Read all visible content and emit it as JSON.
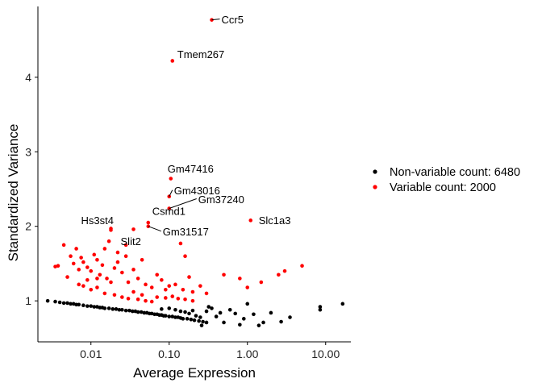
{
  "chart_data": {
    "type": "scatter",
    "xlabel": "Average Expression",
    "ylabel": "Standardized Variance",
    "x_scale": "log10",
    "xlim": [
      0.0021,
      21
    ],
    "ylim": [
      0.45,
      4.95
    ],
    "x_ticks": [
      {
        "value": 0.01,
        "label": "0.01"
      },
      {
        "value": 0.1,
        "label": "0.10"
      },
      {
        "value": 1,
        "label": "1.00"
      },
      {
        "value": 10,
        "label": "10.00"
      }
    ],
    "y_ticks": [
      {
        "value": 1,
        "label": "1"
      },
      {
        "value": 2,
        "label": "2"
      },
      {
        "value": 3,
        "label": "3"
      },
      {
        "value": 4,
        "label": "4"
      }
    ],
    "grid": false,
    "legend_position": "right",
    "series": [
      {
        "name": "Non-variable count: 6480",
        "color": "#000000",
        "points": [
          [
            0.0028,
            1.0
          ],
          [
            0.0035,
            0.99
          ],
          [
            0.004,
            0.98
          ],
          [
            0.0045,
            0.97
          ],
          [
            0.005,
            0.97
          ],
          [
            0.0055,
            0.96
          ],
          [
            0.006,
            0.96
          ],
          [
            0.0065,
            0.95
          ],
          [
            0.007,
            0.95
          ],
          [
            0.008,
            0.94
          ],
          [
            0.009,
            0.93
          ],
          [
            0.01,
            0.93
          ],
          [
            0.011,
            0.92
          ],
          [
            0.012,
            0.92
          ],
          [
            0.013,
            0.91
          ],
          [
            0.014,
            0.91
          ],
          [
            0.015,
            0.9
          ],
          [
            0.017,
            0.9
          ],
          [
            0.019,
            0.89
          ],
          [
            0.021,
            0.89
          ],
          [
            0.023,
            0.88
          ],
          [
            0.025,
            0.88
          ],
          [
            0.028,
            0.87
          ],
          [
            0.031,
            0.87
          ],
          [
            0.034,
            0.86
          ],
          [
            0.037,
            0.86
          ],
          [
            0.04,
            0.85
          ],
          [
            0.044,
            0.85
          ],
          [
            0.048,
            0.84
          ],
          [
            0.052,
            0.84
          ],
          [
            0.056,
            0.83
          ],
          [
            0.06,
            0.83
          ],
          [
            0.065,
            0.82
          ],
          [
            0.07,
            0.82
          ],
          [
            0.075,
            0.81
          ],
          [
            0.08,
            0.81
          ],
          [
            0.085,
            0.8
          ],
          [
            0.09,
            0.8
          ],
          [
            0.1,
            0.79
          ],
          [
            0.11,
            0.79
          ],
          [
            0.12,
            0.78
          ],
          [
            0.13,
            0.78
          ],
          [
            0.14,
            0.77
          ],
          [
            0.15,
            0.76
          ],
          [
            0.17,
            0.76
          ],
          [
            0.19,
            0.75
          ],
          [
            0.21,
            0.74
          ],
          [
            0.24,
            0.73
          ],
          [
            0.27,
            0.72
          ],
          [
            0.3,
            0.71
          ],
          [
            0.08,
            0.89
          ],
          [
            0.1,
            0.9
          ],
          [
            0.12,
            0.88
          ],
          [
            0.14,
            0.86
          ],
          [
            0.16,
            0.85
          ],
          [
            0.18,
            0.83
          ],
          [
            0.2,
            0.87
          ],
          [
            0.22,
            0.8
          ],
          [
            0.25,
            0.78
          ],
          [
            0.3,
            0.86
          ],
          [
            0.35,
            0.9
          ],
          [
            0.4,
            0.79
          ],
          [
            0.45,
            0.84
          ],
          [
            0.5,
            0.71
          ],
          [
            0.6,
            0.88
          ],
          [
            0.7,
            0.83
          ],
          [
            0.8,
            0.68
          ],
          [
            0.9,
            0.76
          ],
          [
            1.0,
            0.96
          ],
          [
            1.2,
            0.82
          ],
          [
            1.4,
            0.67
          ],
          [
            1.6,
            0.71
          ],
          [
            2.0,
            0.84
          ],
          [
            2.7,
            0.72
          ],
          [
            3.5,
            0.78
          ],
          [
            8.5,
            0.88
          ],
          [
            8.5,
            0.92
          ],
          [
            16.5,
            0.96
          ],
          [
            0.26,
            0.67
          ],
          [
            0.32,
            0.92
          ]
        ]
      },
      {
        "name": "Variable count: 2000",
        "color": "#ff0000",
        "points": [
          [
            0.0038,
            1.47
          ],
          [
            0.0035,
            1.46
          ],
          [
            0.0045,
            1.75
          ],
          [
            0.005,
            1.32
          ],
          [
            0.0055,
            1.6
          ],
          [
            0.006,
            1.5
          ],
          [
            0.0065,
            1.7
          ],
          [
            0.007,
            1.42
          ],
          [
            0.0075,
            1.58
          ],
          [
            0.008,
            1.52
          ],
          [
            0.009,
            1.45
          ],
          [
            0.01,
            1.4
          ],
          [
            0.011,
            1.62
          ],
          [
            0.012,
            1.55
          ],
          [
            0.013,
            1.35
          ],
          [
            0.014,
            1.48
          ],
          [
            0.015,
            1.7
          ],
          [
            0.016,
            1.3
          ],
          [
            0.018,
            1.95
          ],
          [
            0.02,
            1.44
          ],
          [
            0.022,
            1.52
          ],
          [
            0.025,
            1.38
          ],
          [
            0.028,
            1.6
          ],
          [
            0.03,
            1.25
          ],
          [
            0.035,
            1.42
          ],
          [
            0.04,
            1.3
          ],
          [
            0.045,
            1.55
          ],
          [
            0.05,
            1.22
          ],
          [
            0.06,
            1.18
          ],
          [
            0.07,
            1.35
          ],
          [
            0.08,
            1.28
          ],
          [
            0.09,
            1.15
          ],
          [
            0.1,
            1.2
          ],
          [
            0.12,
            1.22
          ],
          [
            0.15,
            1.15
          ],
          [
            0.18,
            1.32
          ],
          [
            0.2,
            1.12
          ],
          [
            0.25,
            1.2
          ],
          [
            0.3,
            1.1
          ],
          [
            0.5,
            1.35
          ],
          [
            0.8,
            1.3
          ],
          [
            1.0,
            1.18
          ],
          [
            1.5,
            1.25
          ],
          [
            2.5,
            1.35
          ],
          [
            3.0,
            1.4
          ],
          [
            5.0,
            1.47
          ],
          [
            0.012,
            1.18
          ],
          [
            0.015,
            1.1
          ],
          [
            0.02,
            1.08
          ],
          [
            0.025,
            1.05
          ],
          [
            0.03,
            1.03
          ],
          [
            0.04,
            1.02
          ],
          [
            0.05,
            1.0
          ],
          [
            0.06,
            0.99
          ],
          [
            0.008,
            1.2
          ],
          [
            0.01,
            1.15
          ],
          [
            0.018,
            1.25
          ],
          [
            0.035,
            1.12
          ],
          [
            0.045,
            1.08
          ],
          [
            0.07,
            1.05
          ],
          [
            0.09,
            1.04
          ],
          [
            0.11,
            1.06
          ],
          [
            0.13,
            1.03
          ],
          [
            0.16,
            1.02
          ],
          [
            0.2,
            1.0
          ],
          [
            0.017,
            1.8
          ],
          [
            0.022,
            1.65
          ],
          [
            0.028,
            1.75
          ],
          [
            0.16,
            1.6
          ],
          [
            0.14,
            1.77
          ],
          [
            0.012,
            1.3
          ],
          [
            0.009,
            1.28
          ],
          [
            0.007,
            1.22
          ]
        ]
      }
    ],
    "labeled_points": [
      {
        "gene": "Ccr5",
        "x": 0.35,
        "y": 4.77
      },
      {
        "gene": "Tmem267",
        "x": 0.11,
        "y": 4.22
      },
      {
        "gene": "Gm47416",
        "x": 0.105,
        "y": 2.64
      },
      {
        "gene": "Gm43016",
        "x": 0.1,
        "y": 2.4
      },
      {
        "gene": "Gm37240",
        "x": 0.1,
        "y": 2.24
      },
      {
        "gene": "Slc1a3",
        "x": 1.1,
        "y": 2.08
      },
      {
        "gene": "Csmd1",
        "x": 0.054,
        "y": 2.05
      },
      {
        "gene": "Hs3st4",
        "x": 0.018,
        "y": 1.97
      },
      {
        "gene": "Gm31517",
        "x": 0.054,
        "y": 2.0
      },
      {
        "gene": "Slit2",
        "x": 0.035,
        "y": 1.96
      }
    ]
  }
}
